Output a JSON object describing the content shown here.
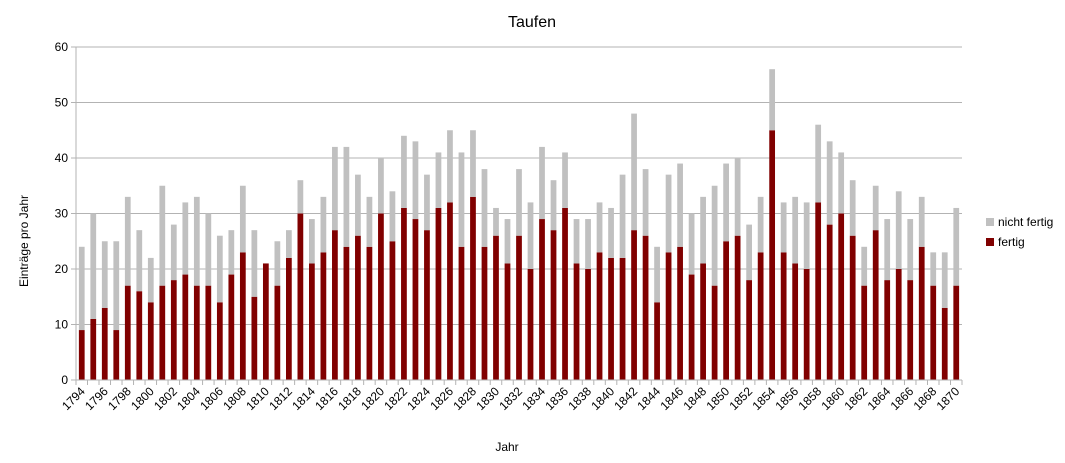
{
  "chart_data": {
    "type": "bar",
    "stacked": true,
    "title": "Taufen",
    "xlabel": "Jahr",
    "ylabel": "Einträge pro Jahr",
    "ylim": [
      0,
      60
    ],
    "yticks": [
      0,
      10,
      20,
      30,
      40,
      50,
      60
    ],
    "grid": "horizontal",
    "legend_position": "right",
    "categories": [
      "1794",
      "1795",
      "1796",
      "1797",
      "1798",
      "1799",
      "1800",
      "1801",
      "1802",
      "1803",
      "1804",
      "1805",
      "1806",
      "1807",
      "1808",
      "1809",
      "1810",
      "1811",
      "1812",
      "1813",
      "1814",
      "1815",
      "1816",
      "1817",
      "1818",
      "1819",
      "1820",
      "1821",
      "1822",
      "1823",
      "1824",
      "1825",
      "1826",
      "1827",
      "1828",
      "1829",
      "1830",
      "1831",
      "1832",
      "1833",
      "1834",
      "1835",
      "1836",
      "1837",
      "1838",
      "1839",
      "1840",
      "1841",
      "1842",
      "1843",
      "1844",
      "1845",
      "1846",
      "1847",
      "1848",
      "1849",
      "1850",
      "1851",
      "1852",
      "1853",
      "1854",
      "1855",
      "1856",
      "1857",
      "1858",
      "1859",
      "1860",
      "1861",
      "1862",
      "1863",
      "1864",
      "1865",
      "1866",
      "1867",
      "1868",
      "1869",
      "1870"
    ],
    "tick_labels": [
      "1794",
      "1796",
      "1798",
      "1800",
      "1802",
      "1804",
      "1806",
      "1808",
      "1810",
      "1812",
      "1814",
      "1816",
      "1818",
      "1820",
      "1822",
      "1824",
      "1826",
      "1828",
      "1830",
      "1832",
      "1834",
      "1836",
      "1838",
      "1840",
      "1842",
      "1844",
      "1846",
      "1848",
      "1850",
      "1852",
      "1854",
      "1856",
      "1858",
      "1860",
      "1862",
      "1864",
      "1866",
      "1868",
      "1870"
    ],
    "series": [
      {
        "name": "fertig",
        "color": "#800000",
        "values": [
          9,
          11,
          13,
          9,
          17,
          16,
          14,
          17,
          18,
          19,
          17,
          17,
          14,
          19,
          23,
          15,
          21,
          17,
          22,
          30,
          21,
          23,
          27,
          24,
          26,
          24,
          30,
          25,
          31,
          29,
          27,
          31,
          32,
          24,
          33,
          24,
          26,
          21,
          26,
          20,
          29,
          27,
          31,
          21,
          20,
          23,
          22,
          22,
          27,
          26,
          14,
          23,
          24,
          19,
          21,
          17,
          25,
          26,
          18,
          23,
          45,
          23,
          21,
          20,
          32,
          28,
          30,
          26,
          17,
          27,
          18,
          20,
          18,
          24,
          17,
          13,
          17
        ]
      },
      {
        "name": "nicht fertig",
        "color": "#c0c0c0",
        "values": [
          15,
          19,
          12,
          16,
          16,
          11,
          8,
          18,
          10,
          13,
          16,
          13,
          12,
          8,
          12,
          12,
          0,
          8,
          5,
          6,
          8,
          10,
          15,
          18,
          11,
          9,
          10,
          9,
          13,
          14,
          10,
          10,
          13,
          17,
          12,
          14,
          5,
          8,
          12,
          12,
          13,
          9,
          10,
          8,
          9,
          9,
          9,
          15,
          21,
          12,
          10,
          14,
          15,
          11,
          12,
          18,
          14,
          14,
          10,
          10,
          11,
          9,
          12,
          12,
          14,
          15,
          11,
          10,
          7,
          8,
          11,
          14,
          11,
          9,
          6,
          10,
          14
        ]
      }
    ]
  }
}
